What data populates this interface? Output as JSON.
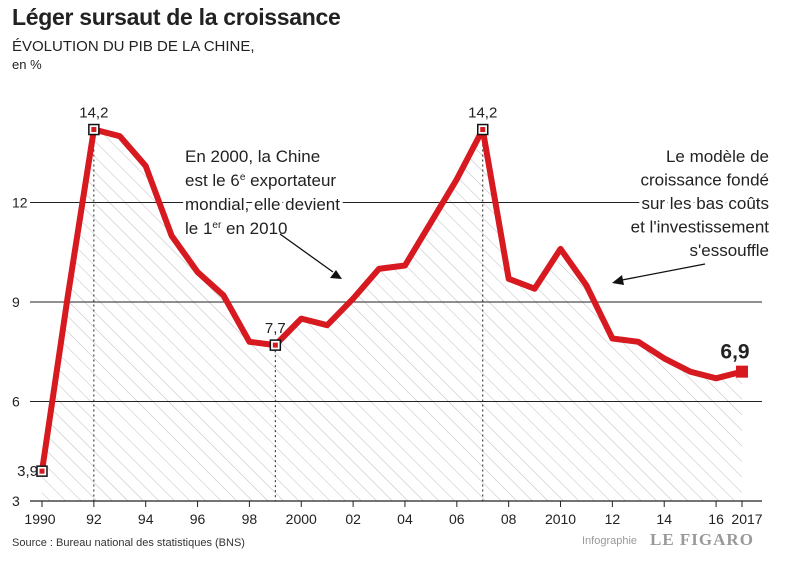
{
  "title": "Léger sursaut de la croissance",
  "subtitle": "ÉVOLUTION DU PIB DE LA CHINE,",
  "unit": "en %",
  "source": "Source : Bureau national des statistiques (BNS)",
  "credit": "Infographie",
  "brand": "LE FIGARO",
  "colors": {
    "line": "#d71920",
    "grid": "#222222",
    "hatch": "#bfbfbf"
  },
  "annotations": {
    "a1": [
      "En 2000, la Chine",
      "est le 6e exportateur",
      "mondial, elle devient",
      "le 1er en 2010"
    ],
    "a2": [
      "Le modèle de",
      "croissance fondé",
      "sur les bas coûts",
      "et l'investissement",
      "s'essouffle"
    ]
  },
  "chart_data": {
    "type": "area",
    "title": "Léger sursaut de la croissance",
    "ylabel": "en %",
    "ylim": [
      3,
      15
    ],
    "grid": true,
    "yticks": [
      "3",
      "6",
      "9",
      "12"
    ],
    "xticks": [
      "1990",
      "92",
      "94",
      "96",
      "98",
      "2000",
      "02",
      "04",
      "06",
      "08",
      "2010",
      "12",
      "14",
      "16",
      "2017"
    ],
    "x": [
      1990,
      1991,
      1992,
      1993,
      1994,
      1995,
      1996,
      1997,
      1998,
      1999,
      2000,
      2001,
      2002,
      2003,
      2004,
      2005,
      2006,
      2007,
      2008,
      2009,
      2010,
      2011,
      2012,
      2013,
      2014,
      2015,
      2016,
      2017
    ],
    "values": [
      3.9,
      9.2,
      14.2,
      14.0,
      13.1,
      11.0,
      9.9,
      9.2,
      7.8,
      7.7,
      8.5,
      8.3,
      9.1,
      10.0,
      10.1,
      11.4,
      12.7,
      14.2,
      9.7,
      9.4,
      10.6,
      9.5,
      7.9,
      7.8,
      7.3,
      6.9,
      6.7,
      6.9
    ],
    "labels": [
      {
        "x": 1990,
        "text": "3,9"
      },
      {
        "x": 1992,
        "text": "14,2"
      },
      {
        "x": 1999,
        "text": "7,7"
      },
      {
        "x": 2007,
        "text": "14,2"
      },
      {
        "x": 2017,
        "text": "6,9"
      }
    ]
  }
}
